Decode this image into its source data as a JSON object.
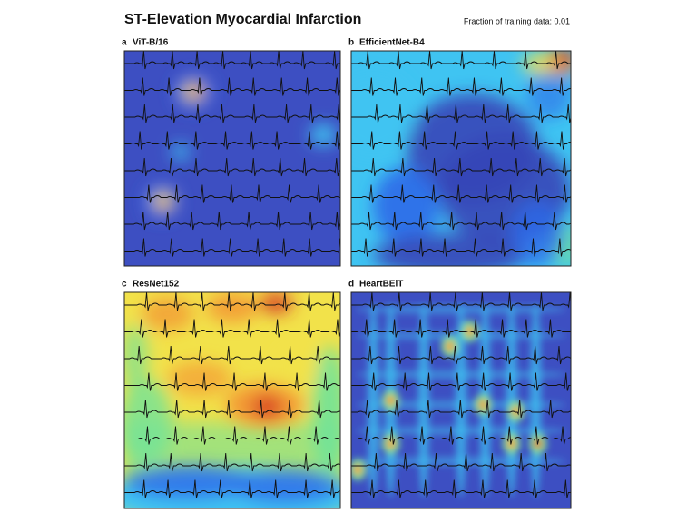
{
  "title": "ST-Elevation Myocardial Infarction",
  "subtitle": "Fraction of training data: 0.01",
  "panels": [
    {
      "letter": "a",
      "label": "ViT-B/16"
    },
    {
      "letter": "b",
      "label": "EfficientNet-B4"
    },
    {
      "letter": "c",
      "label": "ResNet152"
    },
    {
      "letter": "d",
      "label": "HeartBEiT"
    }
  ]
}
